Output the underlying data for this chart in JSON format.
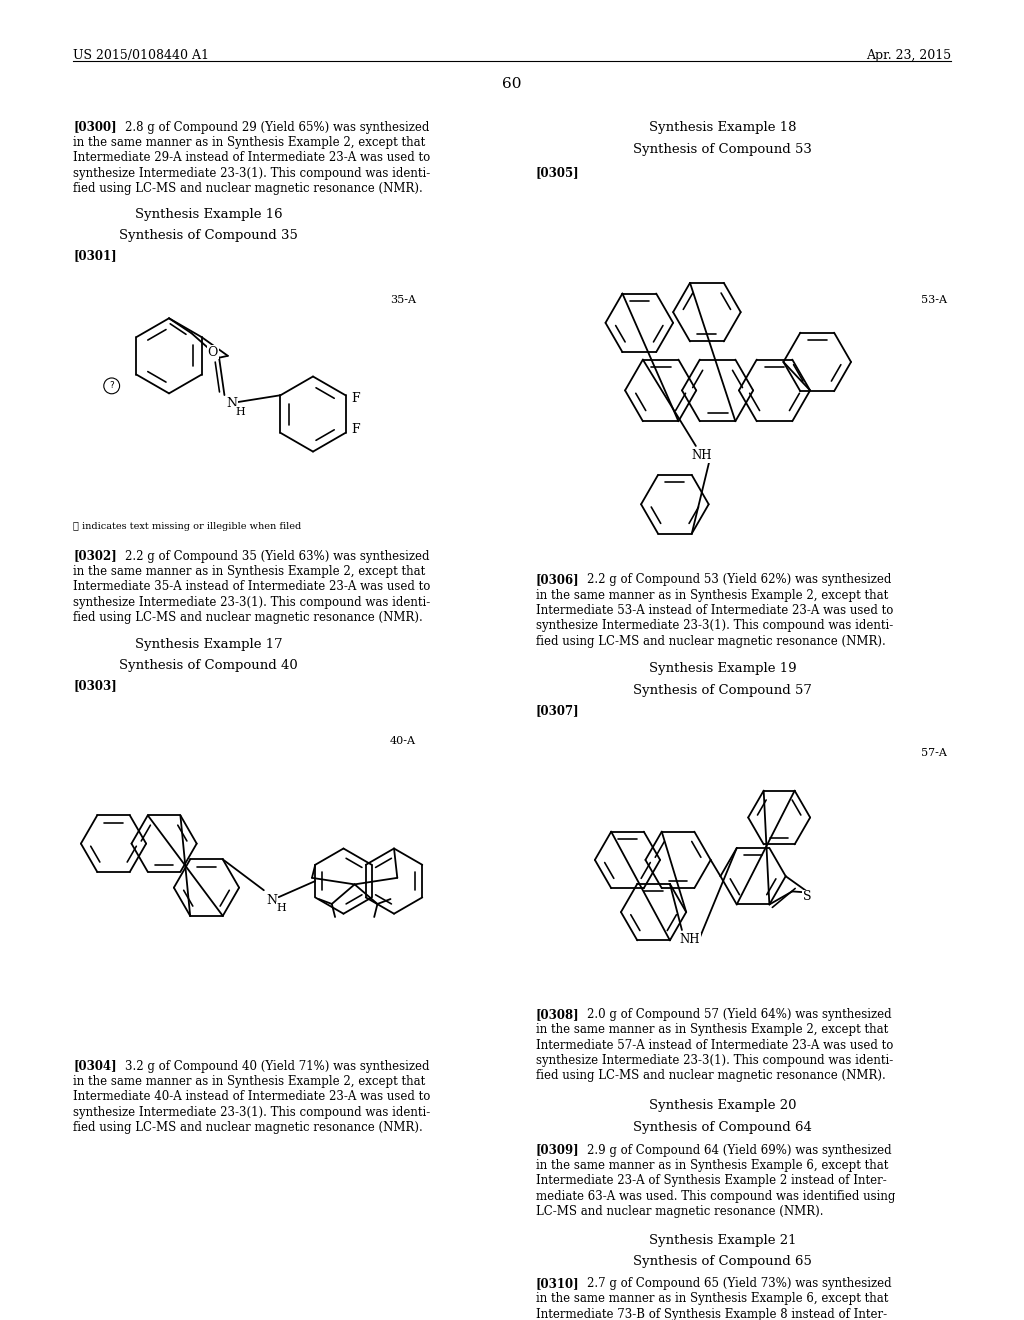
{
  "background_color": "#ffffff",
  "text_color": "#000000",
  "header_left": "US 2015/0108440 A1",
  "header_right": "Apr. 23, 2015",
  "page_number": "60"
}
